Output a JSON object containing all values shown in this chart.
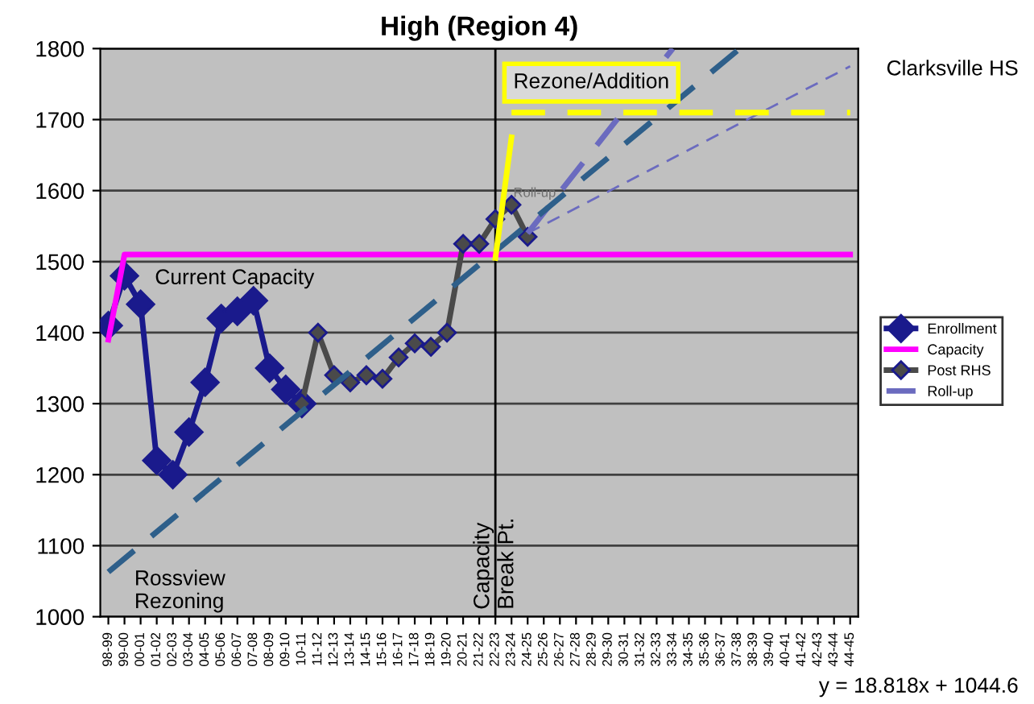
{
  "chart_data": {
    "type": "line",
    "title": "High (Region 4)",
    "categories": [
      "98-99",
      "99-00",
      "00-01",
      "01-02",
      "02-03",
      "03-04",
      "04-05",
      "05-06",
      "06-07",
      "07-08",
      "08-09",
      "09-10",
      "10-11",
      "11-12",
      "12-13",
      "13-14",
      "14-15",
      "15-16",
      "16-17",
      "17-18",
      "18-19",
      "19-20",
      "20-21",
      "21-22",
      "22-23",
      "23-24",
      "24-25",
      "25-26",
      "26-27",
      "27-28",
      "28-29",
      "29-30",
      "30-31",
      "31-32",
      "32-33",
      "33-34",
      "34-35",
      "35-36",
      "36-37",
      "37-38",
      "38-39",
      "39-40",
      "40-41",
      "41-42",
      "42-43",
      "43-44",
      "44-45"
    ],
    "ylim": [
      1000,
      1800
    ],
    "yticks": [
      1000,
      1100,
      1200,
      1300,
      1400,
      1500,
      1600,
      1700,
      1800
    ],
    "grid": "y",
    "legend": "right",
    "series": [
      {
        "name": "Enrollment",
        "color": "#1a1a8c",
        "marker": "diamond",
        "values": [
          1410,
          1480,
          1440,
          1220,
          1200,
          1260,
          1330,
          1420,
          1430,
          1445,
          1350,
          1320,
          1300,
          null,
          null,
          null,
          null,
          null,
          null,
          null,
          null,
          null,
          null,
          null,
          null,
          null,
          null,
          null,
          null,
          null,
          null,
          null,
          null,
          null,
          null,
          null,
          null,
          null,
          null,
          null,
          null,
          null,
          null,
          null,
          null,
          null,
          null
        ]
      },
      {
        "name": "Capacity",
        "color": "#ff00ff",
        "marker": "none",
        "values": [
          1390,
          1510,
          1510,
          1510,
          1510,
          1510,
          1510,
          1510,
          1510,
          1510,
          1510,
          1510,
          1510,
          1510,
          1510,
          1510,
          1510,
          1510,
          1510,
          1510,
          1510,
          1510,
          1510,
          1510,
          1510,
          1510,
          1510,
          1510,
          1510,
          1510,
          1510,
          1510,
          1510,
          1510,
          1510,
          1510,
          1510,
          1510,
          1510,
          1510,
          1510,
          1510,
          1510,
          1510,
          1510,
          1510,
          1510
        ]
      },
      {
        "name": "Post RHS",
        "color": "#4a4a4a",
        "marker": "diamond",
        "values": [
          null,
          null,
          null,
          null,
          null,
          null,
          null,
          null,
          null,
          null,
          null,
          null,
          1300,
          1400,
          1340,
          1330,
          1340,
          1335,
          1365,
          1385,
          1380,
          1400,
          1525,
          1525,
          1560,
          1580,
          1535,
          null,
          null,
          null,
          null,
          null,
          null,
          null,
          null,
          null,
          null,
          null,
          null,
          null,
          null,
          null,
          null,
          null,
          null,
          null,
          null
        ]
      },
      {
        "name": "Roll-up",
        "color": "#6b6bbf",
        "marker": "none",
        "line_style": "dashed",
        "x": [
          "24-25",
          "33-34"
        ],
        "values": [
          1540,
          1800
        ]
      },
      {
        "color": "#6b6bbf",
        "marker": "none",
        "line_style": "dashed",
        "x": [
          "24-25",
          "44-45"
        ],
        "values": [
          1540,
          1775
        ]
      },
      {
        "color": "#2e5f8a",
        "marker": "none",
        "line_style": "dashed",
        "x": [
          "98-99",
          "37-38"
        ],
        "values": [
          1063,
          1797
        ]
      },
      {
        "color": "#ffff00",
        "marker": "none",
        "line_style": "solid",
        "x": [
          "22-23",
          "23-24"
        ],
        "values": [
          1505,
          1675
        ]
      },
      {
        "color": "#ffff00",
        "marker": "none",
        "line_style": "dashed",
        "x": [
          "23-24",
          "44-45"
        ],
        "values": [
          1710,
          1710
        ]
      }
    ],
    "ref_lines": [
      {
        "axis": "x",
        "value": "22-23",
        "label": "Capacity\nBreak Pt.",
        "color": "#000000"
      }
    ],
    "annotations": [
      "Current Capacity",
      "Rossview\nRezoning",
      "Rezone/Addition",
      "Roll-up",
      "Clarksville HS",
      "y = 18.818x + 1044.6"
    ]
  }
}
